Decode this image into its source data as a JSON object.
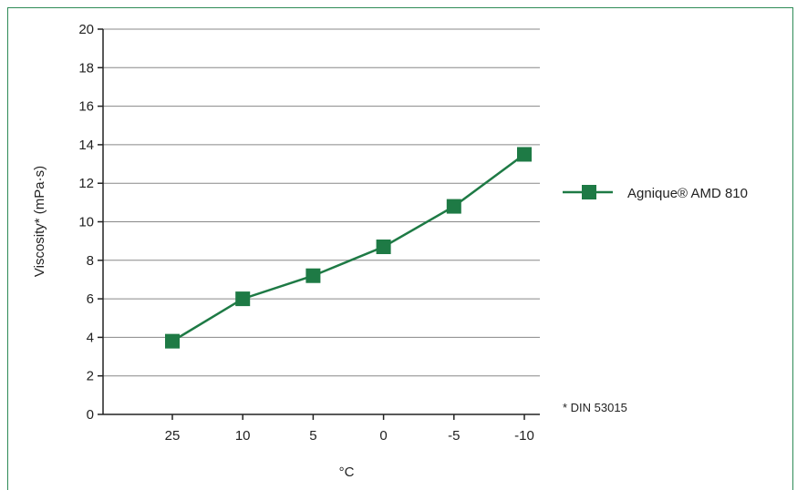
{
  "chart_data": {
    "type": "line",
    "categories": [
      "25",
      "10",
      "5",
      "0",
      "-5",
      "-10"
    ],
    "series": [
      {
        "name": "Agnique® AMD 810",
        "values": [
          3.8,
          6.0,
          7.2,
          8.7,
          10.8,
          13.5
        ],
        "color": "#1e7a45"
      }
    ],
    "xlabel": "°C",
    "ylabel": "Viscosity* (mPa·s)",
    "ylim": [
      0,
      20
    ],
    "yticks": [
      "0",
      "2",
      "4",
      "6",
      "8",
      "10",
      "12",
      "14",
      "16",
      "18",
      "20"
    ],
    "grid": true,
    "legend": "right",
    "note": "* DIN 53015",
    "colors": {
      "line": "#1e7a45",
      "marker": "#1e7a45",
      "grid": "#888888",
      "frame": "#2e8b57"
    }
  }
}
